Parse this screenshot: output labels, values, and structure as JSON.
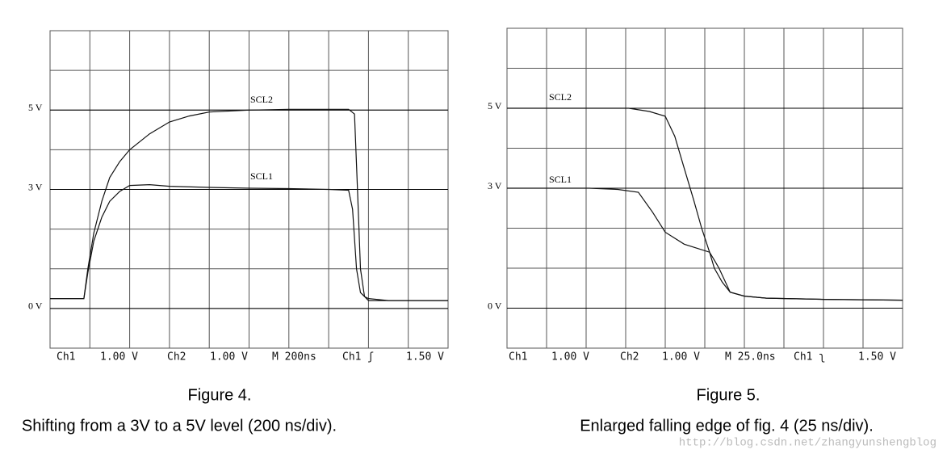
{
  "chart_data": [
    {
      "type": "line",
      "caption": "Figure 4.",
      "subcaption": "Shifting from a 3V to a 5V level (200 ns/div).",
      "xlim": [
        0,
        2000
      ],
      "ylim": [
        -1,
        7
      ],
      "yticks": [
        {
          "value": 5,
          "label": "5 V"
        },
        {
          "value": 3,
          "label": "3 V"
        },
        {
          "value": 0,
          "label": "0 V"
        }
      ],
      "footer": [
        "Ch1",
        "1.00 V",
        "Ch2",
        "1.00 V",
        "M  200ns",
        "Ch1 ʃ",
        "1.50 V"
      ],
      "series": [
        {
          "name": "SCL2",
          "color": "#111111",
          "x": [
            0,
            170,
            190,
            220,
            260,
            300,
            350,
            400,
            500,
            600,
            700,
            800,
            1000,
            1200,
            1500,
            1530,
            1545,
            1560,
            1580,
            1600,
            2000
          ],
          "values": [
            0.25,
            0.25,
            1.0,
            1.9,
            2.7,
            3.3,
            3.7,
            4.0,
            4.4,
            4.7,
            4.85,
            4.95,
            5.0,
            5.02,
            5.02,
            4.9,
            3.0,
            1.0,
            0.3,
            0.2,
            0.2
          ]
        },
        {
          "name": "SCL1",
          "color": "#111111",
          "x": [
            0,
            170,
            190,
            220,
            260,
            300,
            350,
            400,
            500,
            600,
            800,
            1000,
            1200,
            1400,
            1500,
            1520,
            1540,
            1560,
            1580,
            1600,
            1700,
            2000
          ],
          "values": [
            0.25,
            0.25,
            0.9,
            1.7,
            2.3,
            2.7,
            2.95,
            3.1,
            3.12,
            3.08,
            3.05,
            3.03,
            3.02,
            3.0,
            2.98,
            2.5,
            1.0,
            0.4,
            0.3,
            0.25,
            0.2,
            0.2
          ]
        }
      ]
    },
    {
      "type": "line",
      "caption": "Figure 5.",
      "subcaption": "Enlarged falling edge of fig. 4 (25 ns/div).",
      "xlim": [
        0,
        250
      ],
      "ylim": [
        -1,
        7
      ],
      "yticks": [
        {
          "value": 5,
          "label": "5 V"
        },
        {
          "value": 3,
          "label": "3 V"
        },
        {
          "value": 0,
          "label": "0 V"
        }
      ],
      "footer": [
        "Ch1",
        "1.00 V",
        "Ch2",
        "1.00 V",
        "M 25.0ns",
        "Ch1 ʅ",
        "1.50 V"
      ],
      "series": [
        {
          "name": "SCL2",
          "color": "#111111",
          "x": [
            0,
            60,
            77,
            90,
            100,
            106,
            112,
            118,
            123,
            128,
            131,
            136,
            141,
            150,
            164,
            200,
            250
          ],
          "values": [
            5.0,
            5.0,
            5.0,
            4.92,
            4.8,
            4.3,
            3.5,
            2.7,
            2.0,
            1.4,
            1.0,
            0.65,
            0.4,
            0.3,
            0.25,
            0.22,
            0.2
          ]
        },
        {
          "name": "SCL1",
          "color": "#111111",
          "x": [
            0,
            52,
            70,
            83,
            92,
            100,
            112,
            128,
            131,
            134,
            141,
            150,
            164,
            200,
            250
          ],
          "values": [
            3.0,
            3.0,
            2.97,
            2.9,
            2.4,
            1.9,
            1.6,
            1.4,
            1.2,
            1.0,
            0.4,
            0.3,
            0.25,
            0.22,
            0.2
          ]
        }
      ]
    }
  ],
  "watermark": "http://blog.csdn.net/zhangyunshengblog"
}
